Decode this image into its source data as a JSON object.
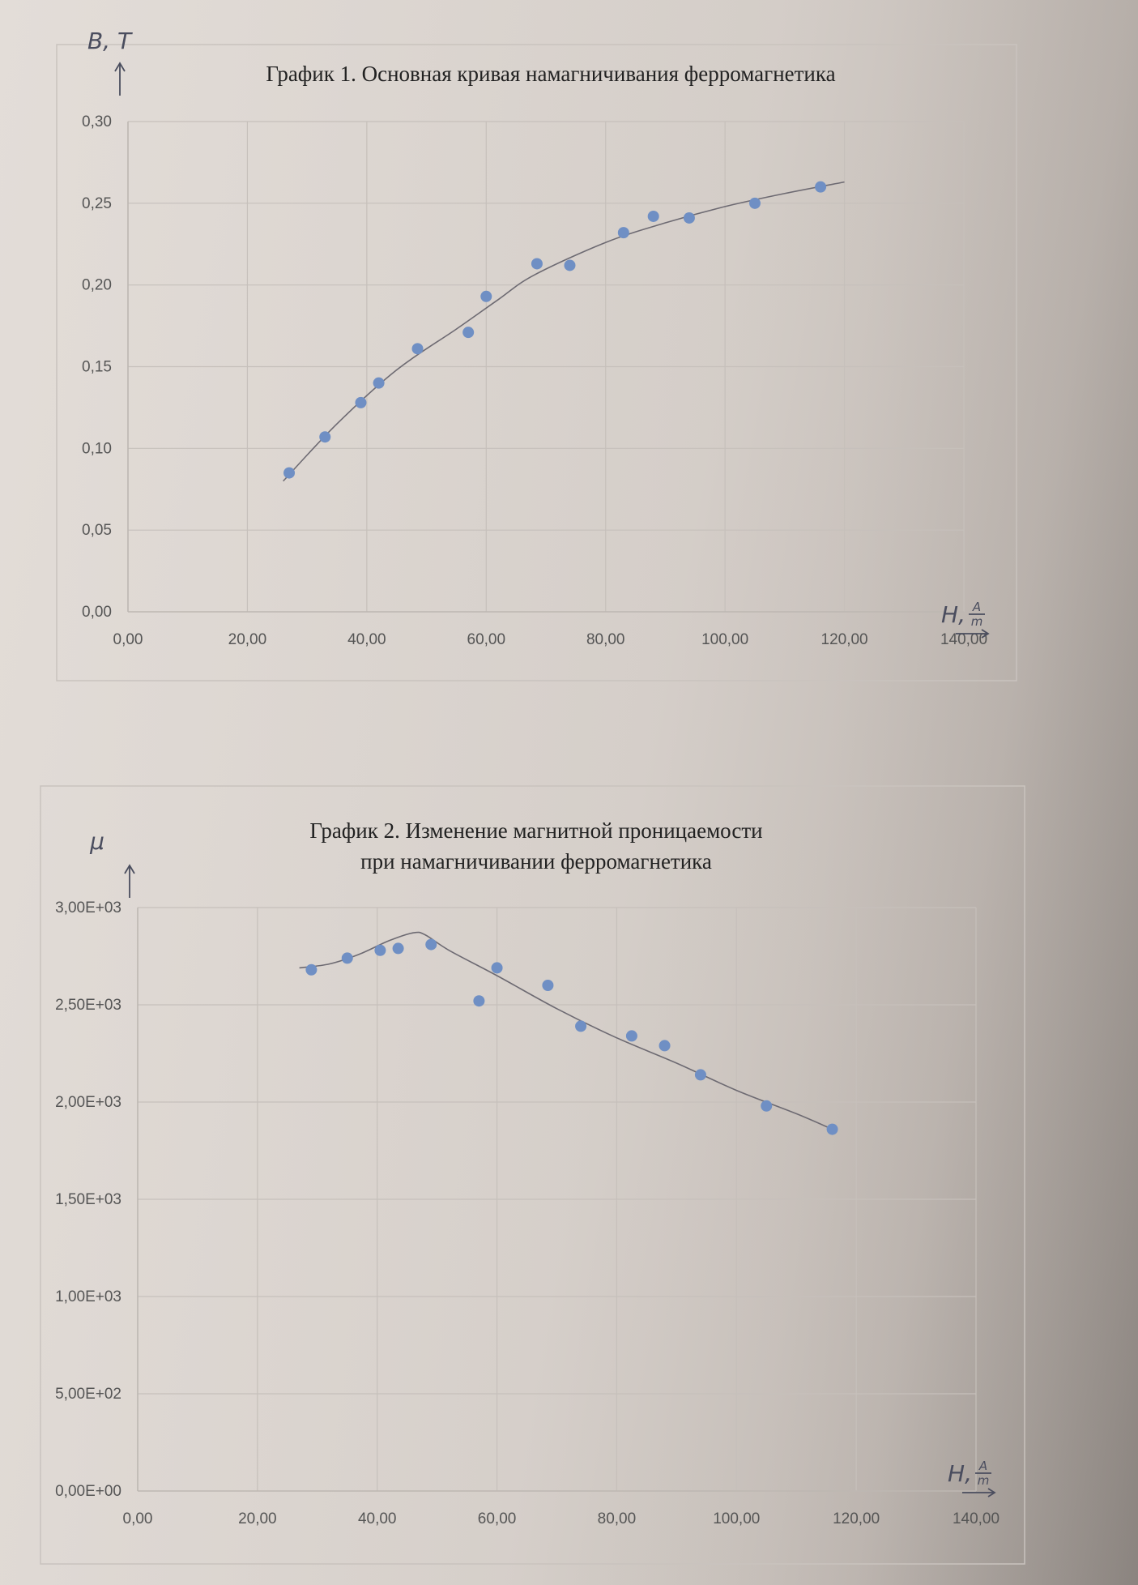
{
  "chart_data": [
    {
      "type": "scatter",
      "title": "График 1. Основная кривая намагничивания ферромагнетика",
      "ylabel": "B, T",
      "xlabel_main": "H,",
      "xlabel_unit_num": "A",
      "xlabel_unit_den": "m",
      "xlim": [
        0,
        140
      ],
      "ylim": [
        0,
        0.3
      ],
      "grid": true,
      "x_tick_labels": [
        "0,00",
        "20,00",
        "40,00",
        "60,00",
        "80,00",
        "100,00",
        "120,00",
        "140,00"
      ],
      "y_tick_labels": [
        "0,00",
        "0,05",
        "0,10",
        "0,15",
        "0,20",
        "0,25",
        "0,30"
      ],
      "x": [
        27.0,
        33.0,
        39.0,
        42.0,
        48.5,
        57.0,
        60.0,
        68.5,
        74.0,
        83.0,
        88.0,
        94.0,
        105.0,
        116.0
      ],
      "y": [
        0.085,
        0.107,
        0.128,
        0.14,
        0.161,
        0.171,
        0.193,
        0.213,
        0.212,
        0.232,
        0.242,
        0.241,
        0.25,
        0.26
      ],
      "trendline": {
        "x": [
          26,
          35,
          45,
          55,
          62,
          68,
          80,
          90,
          100,
          110,
          120
        ],
        "y": [
          0.08,
          0.115,
          0.148,
          0.173,
          0.191,
          0.206,
          0.226,
          0.238,
          0.248,
          0.256,
          0.263
        ]
      },
      "colors": {
        "points": "#6f8fc4",
        "trendline": "#6d6a72",
        "grid": "#c6c0bb"
      }
    },
    {
      "type": "scatter",
      "title": "График 2. Изменение магнитной проницаемости",
      "title_line2": "при намагничивании ферромагнетика",
      "ylabel": "μ",
      "xlabel_main": "H,",
      "xlabel_unit_num": "A",
      "xlabel_unit_den": "m",
      "xlim": [
        0,
        140
      ],
      "ylim": [
        0,
        3000
      ],
      "grid": true,
      "x_tick_labels": [
        "0,00",
        "20,00",
        "40,00",
        "60,00",
        "80,00",
        "100,00",
        "120,00",
        "140,00"
      ],
      "y_tick_labels": [
        "0,00E+00",
        "5,00E+02",
        "1,00E+03",
        "1,50E+03",
        "2,00E+03",
        "2,50E+03",
        "3,00E+03"
      ],
      "x": [
        29.0,
        35.0,
        40.5,
        43.5,
        49.0,
        57.0,
        60.0,
        68.5,
        74.0,
        82.5,
        88.0,
        94.0,
        105.0,
        116.0
      ],
      "y": [
        2680,
        2740,
        2780,
        2790,
        2810,
        2520,
        2690,
        2600,
        2390,
        2340,
        2290,
        2140,
        1980,
        1860
      ],
      "trendline": {
        "x": [
          27,
          32,
          37,
          42,
          46,
          48,
          52,
          60,
          70,
          80,
          90,
          100,
          110,
          116
        ],
        "y": [
          2690,
          2710,
          2760,
          2830,
          2870,
          2860,
          2780,
          2650,
          2480,
          2330,
          2200,
          2060,
          1940,
          1860
        ]
      },
      "colors": {
        "points": "#6f8fc4",
        "trendline": "#6d6a72",
        "grid": "#c6c0bb"
      }
    }
  ]
}
